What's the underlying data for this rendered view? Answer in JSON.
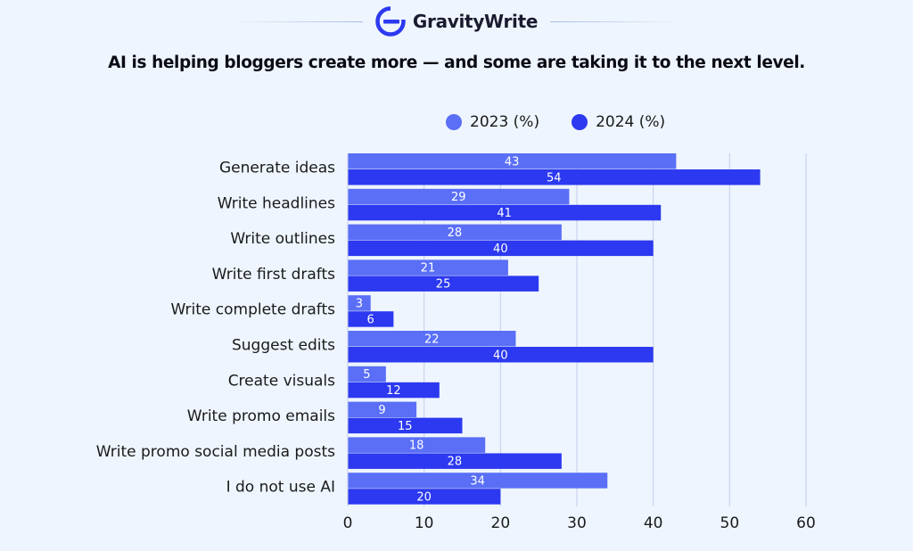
{
  "brand": {
    "name": "GravityWrite",
    "icon": "gravitywrite-logo-icon"
  },
  "colors": {
    "series2023": "#5a6ff6",
    "series2024": "#2c39f0",
    "grid": "#c3cdea",
    "background": "#eef5fe"
  },
  "chart_data": {
    "type": "bar",
    "orientation": "horizontal",
    "title": "AI is helping bloggers create more — and some are taking it to the next level.",
    "categories": [
      "Generate ideas",
      "Write headlines",
      "Write outlines",
      "Write first drafts",
      "Write complete drafts",
      "Suggest edits",
      "Create visuals",
      "Write promo emails",
      "Write promo social media posts",
      "I do not use AI"
    ],
    "series": [
      {
        "name": "2023 (%)",
        "values": [
          43,
          29,
          28,
          21,
          3,
          22,
          5,
          9,
          18,
          34
        ]
      },
      {
        "name": "2024 (%)",
        "values": [
          54,
          41,
          40,
          25,
          6,
          40,
          12,
          15,
          28,
          20
        ]
      }
    ],
    "xlim": [
      0,
      60
    ],
    "xticks": [
      0,
      10,
      20,
      30,
      40,
      50,
      60
    ],
    "xlabel": "",
    "ylabel": "",
    "grid": "vertical",
    "legend": "top",
    "data_labels": "inside-center"
  }
}
